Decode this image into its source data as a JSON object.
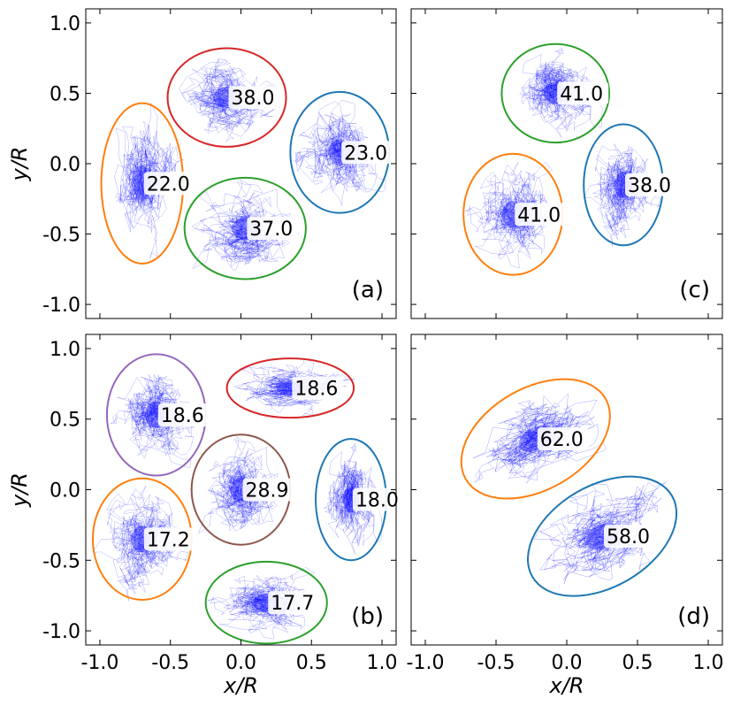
{
  "figure": {
    "xlabel": "x/R",
    "ylabel": "y/R",
    "xlim": [
      -1.1,
      1.1
    ],
    "ylim": [
      -1.1,
      1.1
    ],
    "xticks": [
      "-1.0",
      "-0.5",
      "0.0",
      "0.5",
      "1.0"
    ],
    "yticks": [
      "1.0",
      "0.5",
      "0.0",
      "-0.5",
      "-1.0"
    ],
    "trajectory_color": "#0000ff"
  },
  "chart_data": [
    {
      "type": "scatter",
      "panel": "(a)",
      "position": "top-left",
      "clusters": [
        {
          "label": "38.0",
          "center": [
            -0.1,
            0.47
          ],
          "rx": 0.42,
          "ry": 0.35,
          "tilt_deg": 0,
          "color": "#d62728"
        },
        {
          "label": "23.0",
          "center": [
            0.7,
            0.08
          ],
          "rx": 0.35,
          "ry": 0.43,
          "tilt_deg": 0,
          "color": "#1f77b4"
        },
        {
          "label": "22.0",
          "center": [
            -0.7,
            -0.14
          ],
          "rx": 0.29,
          "ry": 0.57,
          "tilt_deg": 0,
          "color": "#ff7f0e"
        },
        {
          "label": "37.0",
          "center": [
            0.03,
            -0.46
          ],
          "rx": 0.43,
          "ry": 0.36,
          "tilt_deg": 0,
          "color": "#2ca02c"
        }
      ]
    },
    {
      "type": "scatter",
      "panel": "(c)",
      "position": "top-right",
      "clusters": [
        {
          "label": "41.0",
          "center": [
            -0.08,
            0.5
          ],
          "rx": 0.38,
          "ry": 0.35,
          "tilt_deg": 0,
          "color": "#2ca02c"
        },
        {
          "label": "38.0",
          "center": [
            0.4,
            -0.15
          ],
          "rx": 0.28,
          "ry": 0.43,
          "tilt_deg": 0,
          "color": "#1f77b4"
        },
        {
          "label": "41.0",
          "center": [
            -0.38,
            -0.36
          ],
          "rx": 0.35,
          "ry": 0.43,
          "tilt_deg": 0,
          "color": "#ff7f0e"
        }
      ]
    },
    {
      "type": "scatter",
      "panel": "(b)",
      "position": "bottom-left",
      "clusters": [
        {
          "label": "18.6",
          "center": [
            -0.6,
            0.53
          ],
          "rx": 0.35,
          "ry": 0.43,
          "tilt_deg": 0,
          "color": "#9467bd"
        },
        {
          "label": "18.6",
          "center": [
            0.35,
            0.72
          ],
          "rx": 0.45,
          "ry": 0.21,
          "tilt_deg": 0,
          "color": "#d62728"
        },
        {
          "label": "28.9",
          "center": [
            0.0,
            0.0
          ],
          "rx": 0.35,
          "ry": 0.39,
          "tilt_deg": 0,
          "color": "#8c564b"
        },
        {
          "label": "18.0",
          "center": [
            0.78,
            -0.07
          ],
          "rx": 0.25,
          "ry": 0.43,
          "tilt_deg": 0,
          "color": "#1f77b4"
        },
        {
          "label": "17.2",
          "center": [
            -0.7,
            -0.35
          ],
          "rx": 0.35,
          "ry": 0.43,
          "tilt_deg": 0,
          "color": "#ff7f0e"
        },
        {
          "label": "17.7",
          "center": [
            0.18,
            -0.8
          ],
          "rx": 0.43,
          "ry": 0.29,
          "tilt_deg": 0,
          "color": "#2ca02c"
        }
      ]
    },
    {
      "type": "scatter",
      "panel": "(d)",
      "position": "bottom-right",
      "clusters": [
        {
          "label": "62.0",
          "center": [
            -0.22,
            0.36
          ],
          "rx": 0.57,
          "ry": 0.36,
          "tilt_deg": -30,
          "color": "#ff7f0e"
        },
        {
          "label": "58.0",
          "center": [
            0.25,
            -0.33
          ],
          "rx": 0.57,
          "ry": 0.36,
          "tilt_deg": -30,
          "color": "#1f77b4"
        }
      ]
    }
  ]
}
